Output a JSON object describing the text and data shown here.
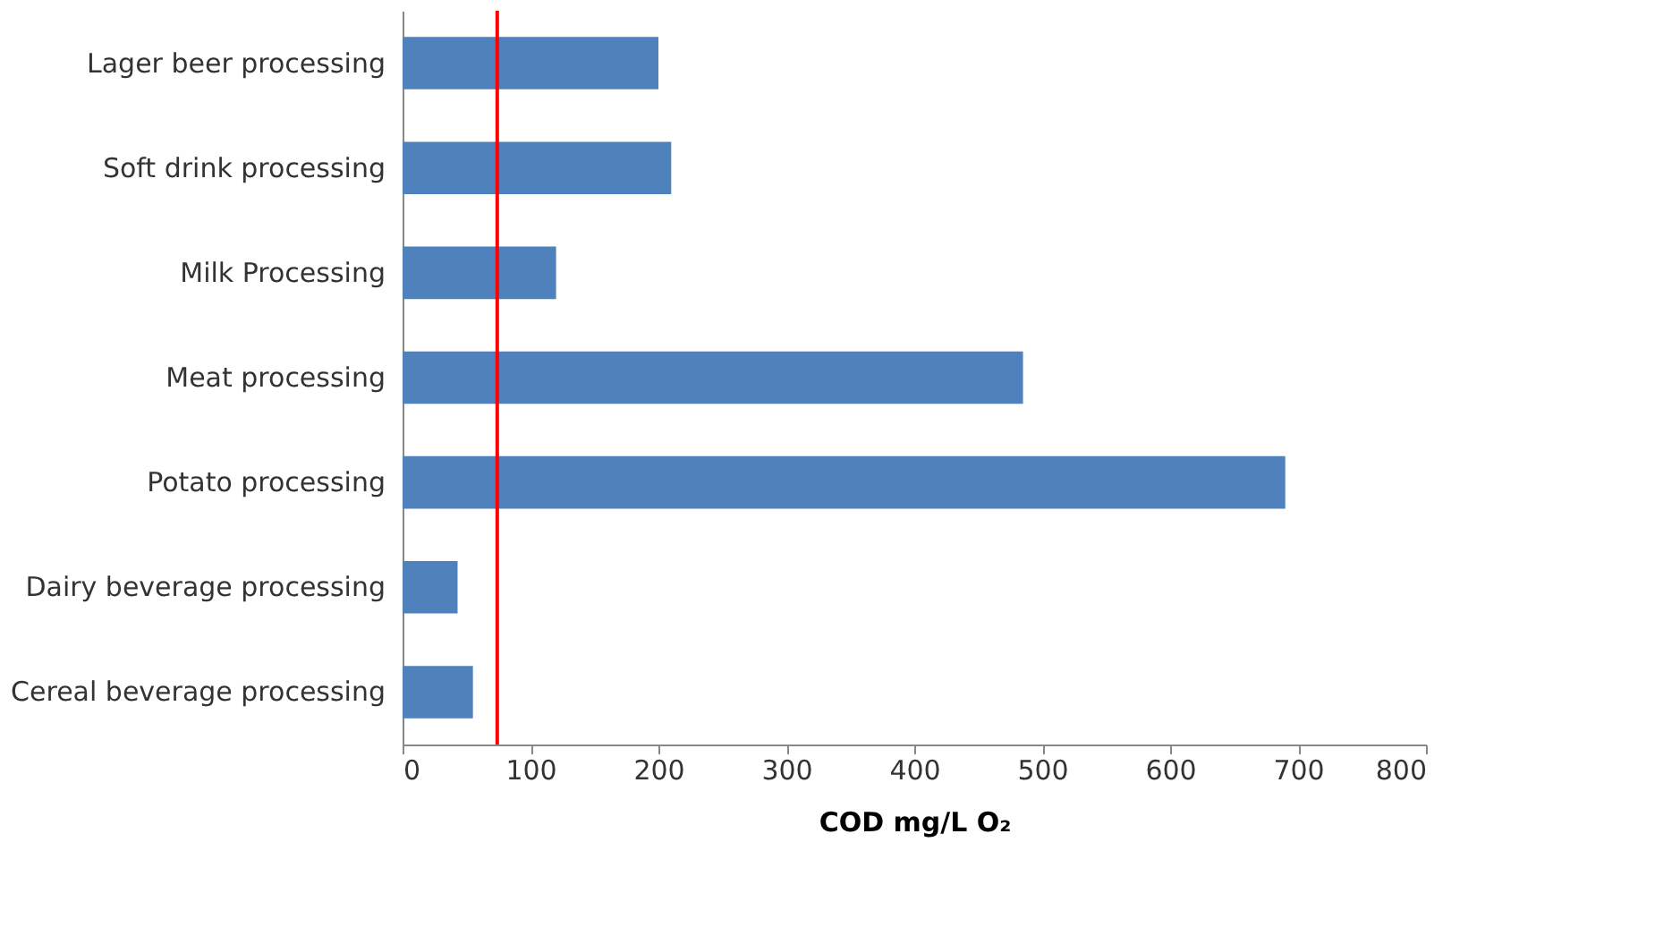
{
  "chart_data": {
    "type": "bar",
    "orientation": "horizontal",
    "xlabel": "COD mg/L O₂",
    "categories": [
      "Lager beer processing",
      "Soft drink processing",
      "Milk Processing",
      "Meat processing",
      "Potato processing",
      "Dairy beverage processing",
      "Cereal beverage processing"
    ],
    "values": [
      200,
      210,
      120,
      485,
      690,
      43,
      55
    ],
    "color": "#4f81bd",
    "xlim": [
      0,
      800
    ],
    "xticks": [
      0,
      100,
      200,
      300,
      400,
      500,
      600,
      700,
      800
    ],
    "grid": false,
    "ref_lines": [
      {
        "axis": "x",
        "value": 74,
        "color": "#ff0000"
      }
    ]
  }
}
